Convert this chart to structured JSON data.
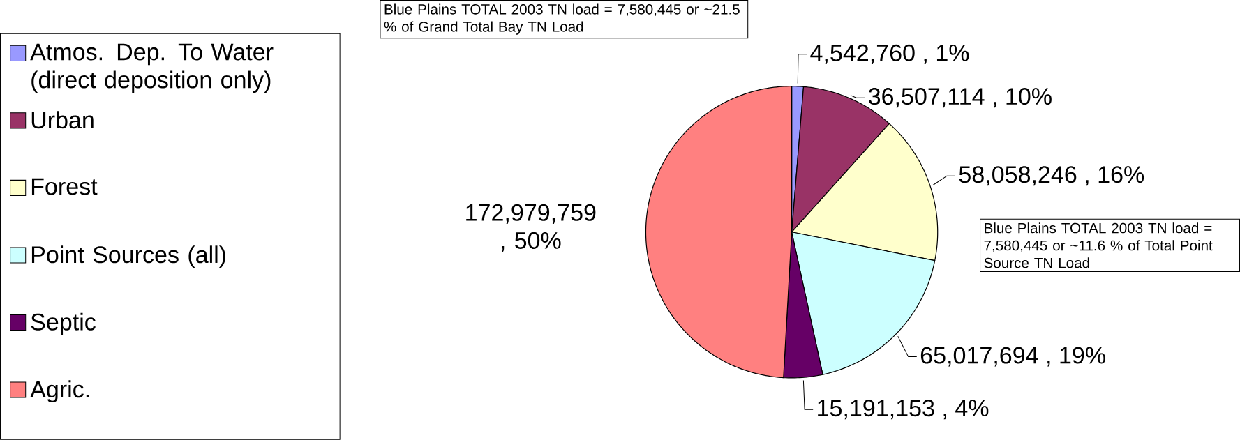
{
  "chart_data": {
    "type": "pie",
    "categories": [
      "Atmos. Dep. To Water (direct deposition only)",
      "Urban",
      "Forest",
      "Point Sources (all)",
      "Septic",
      "Agric."
    ],
    "values": [
      4542760,
      36507114,
      58058246,
      65017694,
      15191153,
      172979759
    ],
    "value_labels": [
      "4,542,760 , 1%",
      "36,507,114 , 10%",
      "58,058,246 , 16%",
      "65,017,694 , 19%",
      "15,191,153 , 4%",
      "172,979,759 , 50%"
    ],
    "colors": [
      "#9999ff",
      "#993366",
      "#ffffcc",
      "#ccffff",
      "#660066",
      "#ff8080"
    ],
    "legend": "left",
    "annotations": [
      "Blue Plains TOTAL 2003 TN load = 7,580,445 or ~21.5 % of Grand Total Bay TN Load",
      "Blue Plains TOTAL 2003 TN load = 7,580,445 or ~11.6 % of Total Point Source TN Load"
    ]
  }
}
